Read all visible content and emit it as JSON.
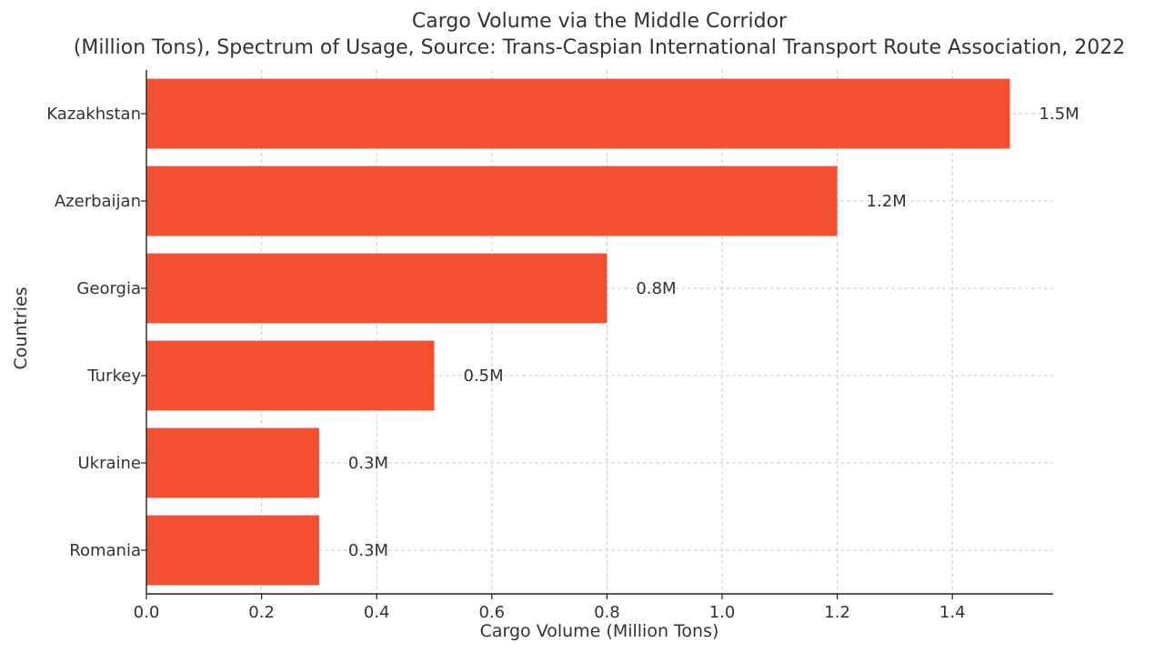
{
  "chart_data": {
    "type": "bar",
    "orientation": "horizontal",
    "title_lines": [
      "Cargo Volume via the Middle Corridor",
      "(Million Tons), Spectrum of Usage, Source: Trans-Caspian International Transport Route Association, 2022"
    ],
    "xlabel": "Cargo Volume (Million Tons)",
    "ylabel": "Countries",
    "categories": [
      "Kazakhstan",
      "Azerbaijan",
      "Georgia",
      "Turkey",
      "Ukraine",
      "Romania"
    ],
    "values": [
      1.5,
      1.2,
      0.8,
      0.5,
      0.3,
      0.3
    ],
    "value_labels": [
      "1.5M",
      "1.2M",
      "0.8M",
      "0.5M",
      "0.3M",
      "0.3M"
    ],
    "xlim": [
      0,
      1.575
    ],
    "xticks": [
      0.0,
      0.2,
      0.4,
      0.6,
      0.8,
      1.0,
      1.2,
      1.4
    ],
    "xtick_labels": [
      "0.0",
      "0.2",
      "0.4",
      "0.6",
      "0.8",
      "1.0",
      "1.2",
      "1.4"
    ],
    "grid": true,
    "bar_color": "#F44F30"
  }
}
